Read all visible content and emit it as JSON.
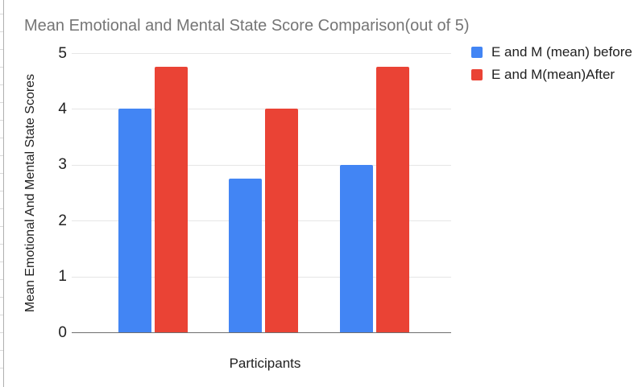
{
  "chart_data": {
    "type": "bar",
    "title": "Mean Emotional and Mental State Score Comparison(out of 5)",
    "xlabel": "Participants",
    "ylabel": "Mean Emotional And Mental State Scores",
    "categories": [
      "",
      "",
      ""
    ],
    "series": [
      {
        "name": "E and M (mean) before",
        "color": "#4285F4",
        "values": [
          4,
          2.75,
          3
        ]
      },
      {
        "name": "E and M(mean)After",
        "color": "#EA4335",
        "values": [
          4.75,
          4,
          4.75
        ]
      }
    ],
    "ylim": [
      0,
      5
    ],
    "yticks": [
      0,
      1,
      2,
      3,
      4,
      5
    ],
    "grid": true,
    "legend_position": "right"
  },
  "colors": {
    "series_before": "#4285F4",
    "series_after": "#EA4335",
    "title_text": "#757575",
    "axis_text": "#212121",
    "gridline": "#e6e6e6",
    "axis_line": "#6e6e6e",
    "background": "#ffffff",
    "sheet_border": "#b0b0b0"
  }
}
